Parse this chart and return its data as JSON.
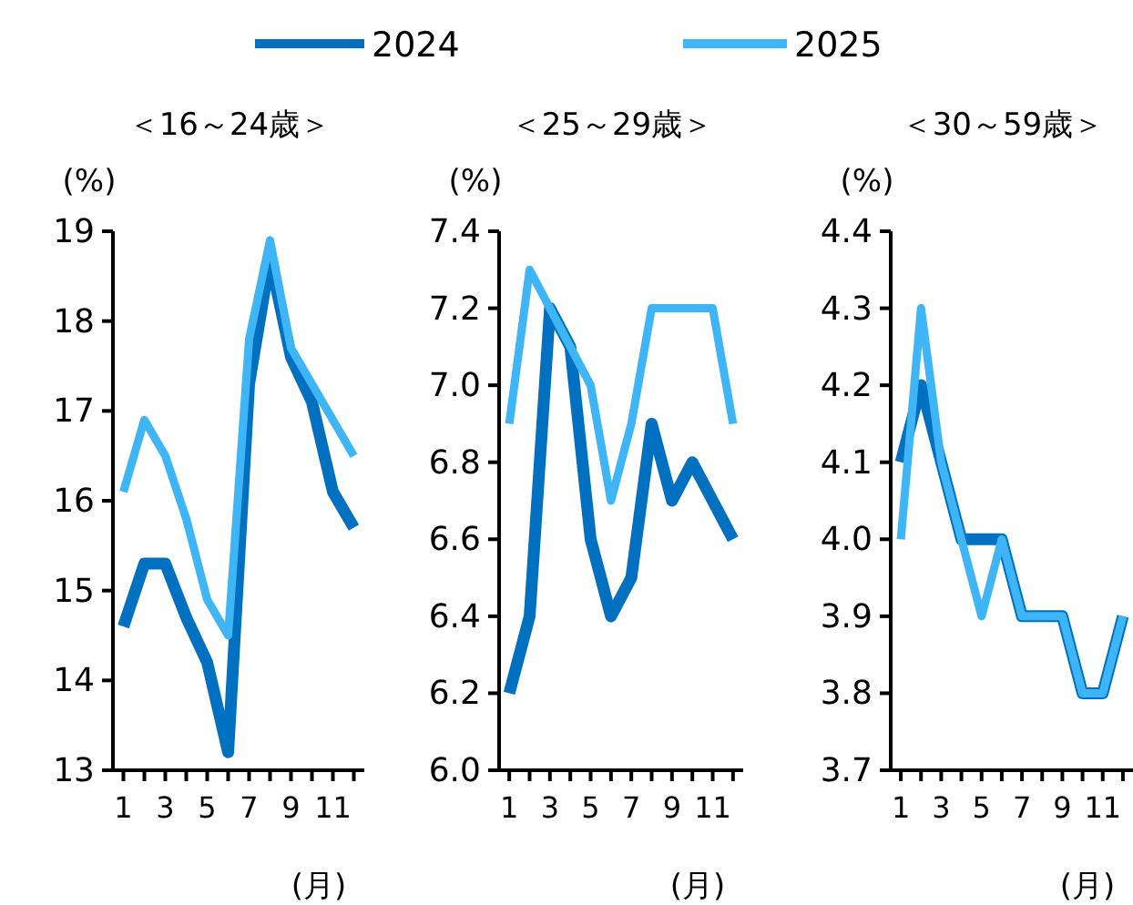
{
  "chart_data": [
    {
      "type": "line",
      "title": "＜16～24歳＞",
      "ylabel": "(%)",
      "xlabel": "(月)",
      "legend": "top",
      "categories": [
        "1",
        null,
        "3",
        null,
        "5",
        null,
        "7",
        null,
        "9",
        null,
        "11",
        null
      ],
      "ylim": [
        13,
        19
      ],
      "yticks": [
        13,
        14,
        15,
        16,
        17,
        18,
        19
      ],
      "series": [
        {
          "name": "2024",
          "color": "#0070c0",
          "values": [
            14.6,
            15.3,
            15.3,
            14.7,
            14.2,
            13.2,
            17.3,
            18.7,
            17.6,
            17.1,
            16.1,
            15.7
          ]
        },
        {
          "name": "2025",
          "color": "#3db5f7",
          "values": [
            16.1,
            16.9,
            16.5,
            15.8,
            14.9,
            14.5,
            17.8,
            18.9,
            17.7,
            17.3,
            16.9,
            16.5
          ]
        }
      ]
    },
    {
      "type": "line",
      "title": "＜25～29歳＞",
      "ylabel": "(%)",
      "xlabel": "(月)",
      "categories": [
        "1",
        null,
        "3",
        null,
        "5",
        null,
        "7",
        null,
        "9",
        null,
        "11",
        null
      ],
      "ylim": [
        6.0,
        7.4
      ],
      "yticks": [
        {
          "value": 6.0,
          "label": "6.0"
        },
        6.2,
        6.4,
        6.6,
        6.8,
        {
          "value": 7.0,
          "label": "7.0"
        },
        7.2,
        7.4
      ],
      "series": [
        {
          "color": "#0070c0",
          "values": [
            6.2,
            6.4,
            7.2,
            7.1,
            6.6,
            6.4,
            6.5,
            6.9,
            6.7,
            6.8,
            6.7,
            6.6
          ]
        },
        {
          "color": "#3db5f7",
          "values": [
            6.9,
            7.3,
            7.2,
            7.1,
            7.0,
            6.7,
            6.9,
            7.2,
            7.2,
            7.2,
            7.2,
            6.9
          ]
        }
      ]
    },
    {
      "type": "line",
      "title": "＜30～59歳＞",
      "ylabel": "(%)",
      "xlabel": "(月)",
      "categories": [
        "1",
        null,
        "3",
        null,
        "5",
        null,
        "7",
        null,
        "9",
        null,
        "11",
        null
      ],
      "ylim": [
        3.7,
        4.4
      ],
      "yticks": [
        3.7,
        3.8,
        3.9,
        {
          "value": 4.0,
          "label": "4.0"
        },
        4.1,
        4.2,
        4.3,
        4.4
      ],
      "series": [
        {
          "color": "#0070c0",
          "values": [
            4.1,
            4.2,
            4.1,
            4.0,
            4.0,
            4.0,
            3.9,
            3.9,
            3.9,
            3.8,
            3.8,
            3.9
          ]
        },
        {
          "color": "#3db5f7",
          "values": [
            4.0,
            4.3,
            4.1,
            4.0,
            3.9,
            4.0,
            3.9,
            3.9,
            3.9,
            3.8,
            3.8,
            3.9
          ]
        }
      ]
    }
  ]
}
